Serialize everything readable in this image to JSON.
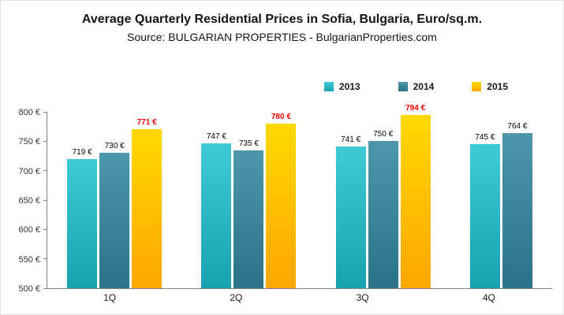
{
  "title": "Average Quarterly Residential Prices in Sofia, Bulgaria, Euro/sq.m.",
  "subtitle": "Source: BULGARIAN PROPERTIES - BulgarianProperties.com",
  "chart_data": {
    "type": "bar",
    "categories": [
      "1Q",
      "2Q",
      "3Q",
      "4Q"
    ],
    "series": [
      {
        "name": "2013",
        "values": [
          719,
          747,
          741,
          745
        ],
        "gradient": [
          "#3ecbd5",
          "#18a2b0"
        ],
        "label_color": "#000000",
        "label_bold": false
      },
      {
        "name": "2014",
        "values": [
          730,
          735,
          750,
          764
        ],
        "gradient": [
          "#4c97ab",
          "#2b7288"
        ],
        "label_color": "#000000",
        "label_bold": false
      },
      {
        "name": "2015",
        "values": [
          771,
          780,
          794,
          null
        ],
        "gradient": [
          "#ffd900",
          "#ffa600"
        ],
        "label_color": "#ff0000",
        "label_bold": true
      }
    ],
    "value_suffix": " €",
    "ylim": [
      500,
      800
    ],
    "ytick_step": 50,
    "ytick_suffix": " €",
    "legend_position": "top-right",
    "grid": false
  }
}
